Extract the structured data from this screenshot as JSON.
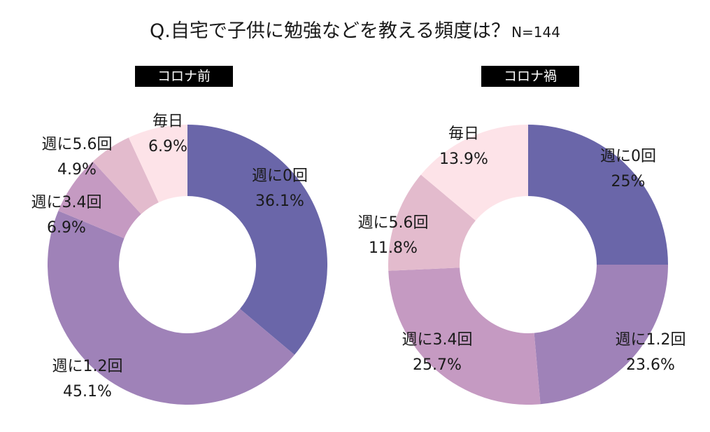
{
  "title": {
    "question": "Q.自宅で子供に勉強などを教える頻度は？",
    "sample": "N=144"
  },
  "colors": {
    "weekly0": "#6a66a9",
    "weekly12": "#9f82b8",
    "weekly34": "#c59ac2",
    "weekly56": "#e3bbcd",
    "daily": "#fde3e8"
  },
  "chart_data": [
    {
      "type": "pie",
      "title": "コロナ前",
      "categories": [
        "週に0回",
        "週に1.2回",
        "週に3.4回",
        "週に5.6回",
        "毎日"
      ],
      "values": [
        36.1,
        45.1,
        6.9,
        4.9,
        6.9
      ],
      "labels": [
        "36.1%",
        "45.1%",
        "6.9%",
        "4.9%",
        "6.9%"
      ]
    },
    {
      "type": "pie",
      "title": "コロナ禍",
      "categories": [
        "週に0回",
        "週に1.2回",
        "週に3.4回",
        "週に5.6回",
        "毎日"
      ],
      "values": [
        25,
        23.6,
        25.7,
        11.8,
        13.9
      ],
      "labels": [
        "25%",
        "23.6%",
        "25.7%",
        "11.8%",
        "13.9%"
      ]
    }
  ]
}
